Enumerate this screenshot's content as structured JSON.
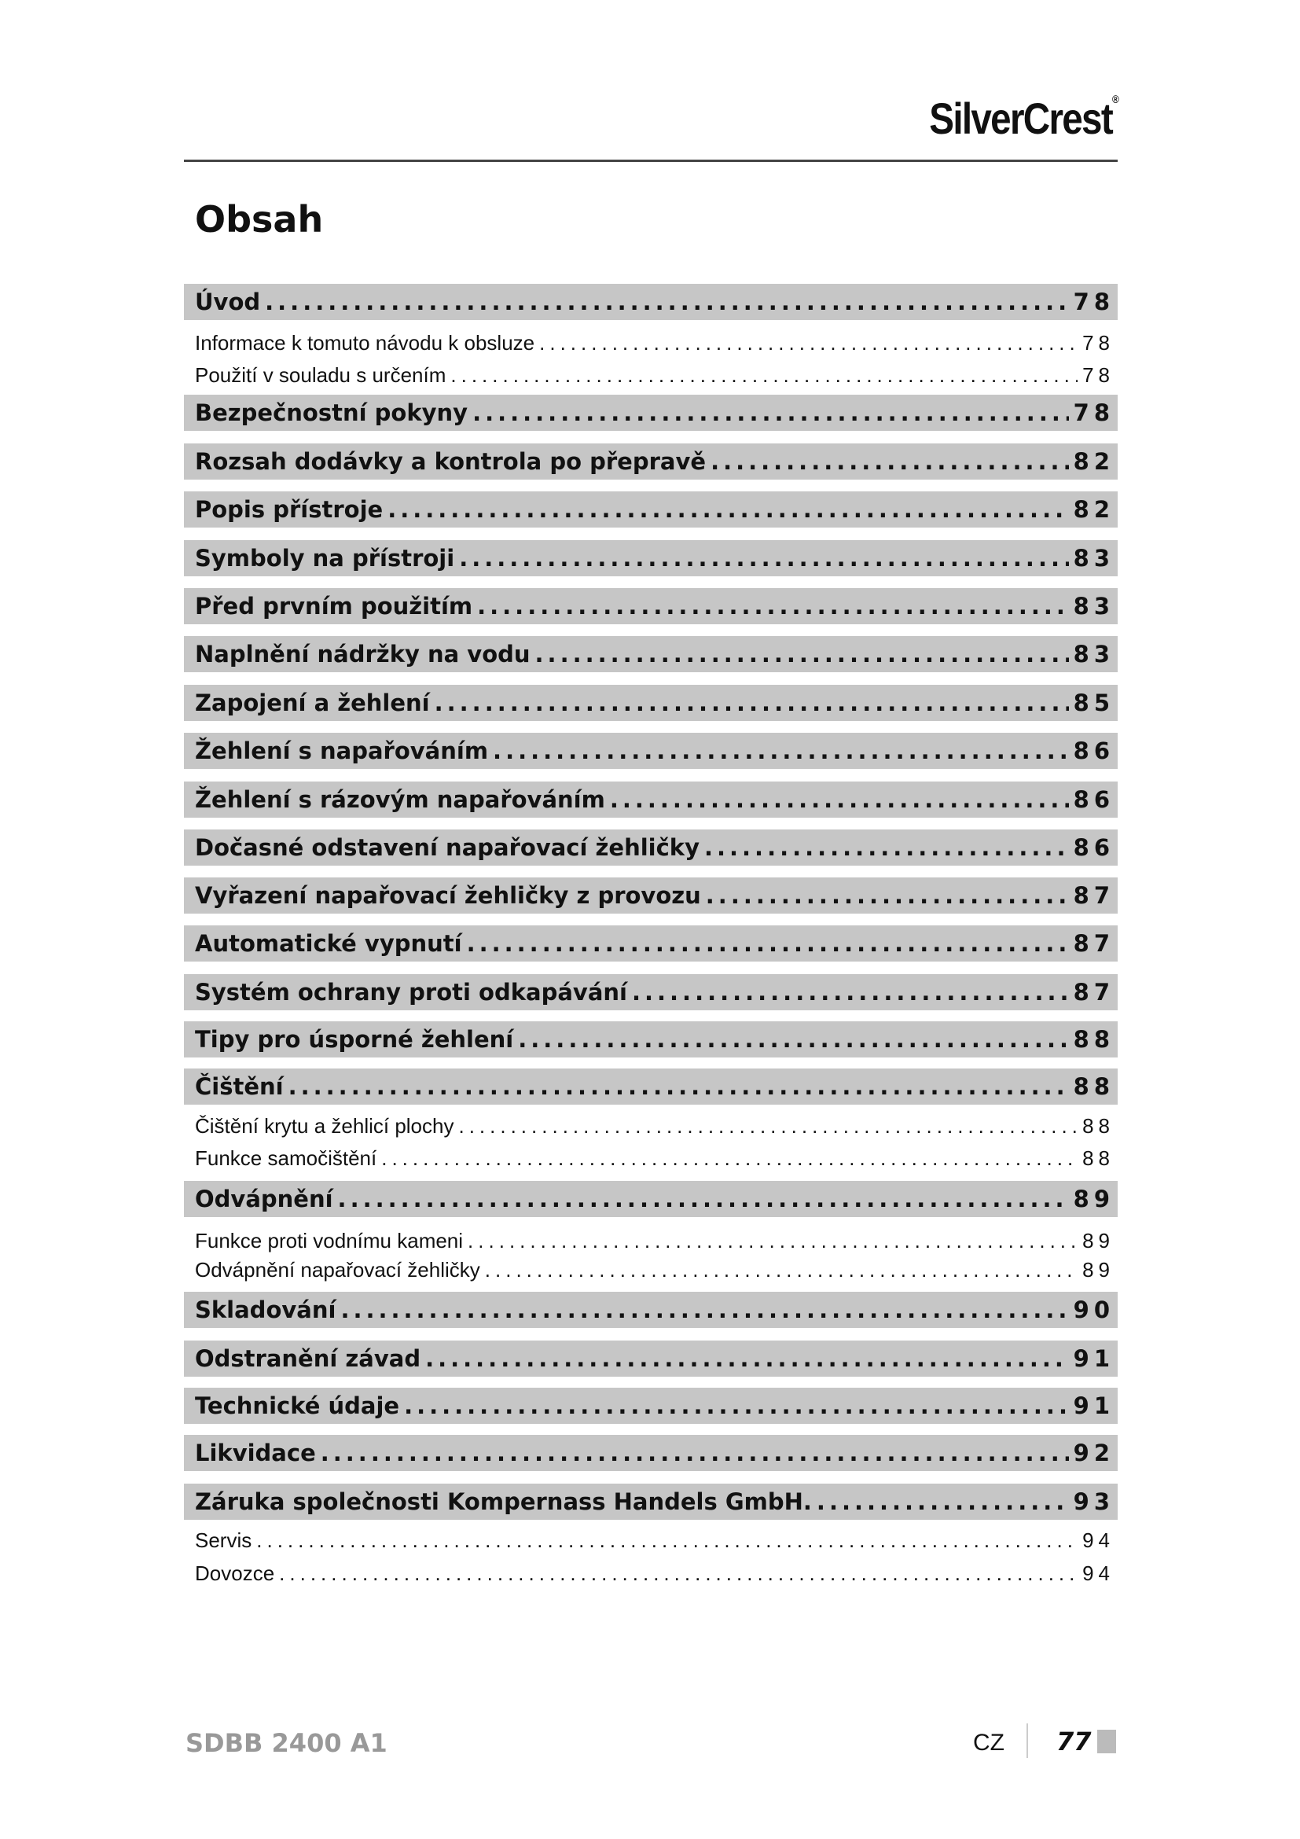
{
  "header": {
    "brand": "SilverCrest",
    "brand_mark": "®"
  },
  "title": "Obsah",
  "toc": [
    {
      "label": "Úvod",
      "page": "78",
      "level": "main"
    },
    {
      "label": "Informace k tomuto návodu k obsluze",
      "page": "78",
      "level": "sub"
    },
    {
      "label": "Použití v souladu s určením",
      "page": "78",
      "level": "sub"
    },
    {
      "label": "Bezpečnostní pokyny",
      "page": "78",
      "level": "main"
    },
    {
      "label": "Rozsah dodávky a kontrola po přepravě",
      "page": "82",
      "level": "main"
    },
    {
      "label": "Popis přístroje",
      "page": "82",
      "level": "main"
    },
    {
      "label": "Symboly na přístroji",
      "page": "83",
      "level": "main"
    },
    {
      "label": "Před prvním použitím",
      "page": "83",
      "level": "main"
    },
    {
      "label": "Naplnění nádržky na vodu",
      "page": "83",
      "level": "main"
    },
    {
      "label": "Zapojení a žehlení",
      "page": "85",
      "level": "main"
    },
    {
      "label": "Žehlení s napařováním",
      "page": "86",
      "level": "main"
    },
    {
      "label": "Žehlení s rázovým napařováním",
      "page": "86",
      "level": "main"
    },
    {
      "label": "Dočasné odstavení napařovací žehličky",
      "page": "86",
      "level": "main"
    },
    {
      "label": "Vyřazení napařovací žehličky z provozu",
      "page": "87",
      "level": "main"
    },
    {
      "label": "Automatické vypnutí",
      "page": "87",
      "level": "main"
    },
    {
      "label": "Systém ochrany proti odkapávání",
      "page": "87",
      "level": "main"
    },
    {
      "label": "Tipy pro úsporné žehlení",
      "page": "88",
      "level": "main"
    },
    {
      "label": "Čištění",
      "page": "88",
      "level": "main"
    },
    {
      "label": "Čištění krytu a žehlicí plochy",
      "page": "88",
      "level": "sub"
    },
    {
      "label": "Funkce samočištění",
      "page": "88",
      "level": "sub"
    },
    {
      "label": "Odvápnění",
      "page": "89",
      "level": "main"
    },
    {
      "label": "Funkce proti vodnímu kameni",
      "page": "89",
      "level": "sub"
    },
    {
      "label": "Odvápnění napařovací žehličky",
      "page": "89",
      "level": "sub"
    },
    {
      "label": "Skladování",
      "page": "90",
      "level": "main"
    },
    {
      "label": "Odstranění závad",
      "page": "91",
      "level": "main"
    },
    {
      "label": "Technické údaje",
      "page": "91",
      "level": "main"
    },
    {
      "label": "Likvidace",
      "page": "92",
      "level": "main"
    },
    {
      "label": "Záruka společnosti Kompernass Handels GmbH.",
      "page": "93",
      "level": "main"
    },
    {
      "label": "Servis",
      "page": "94",
      "level": "sub"
    },
    {
      "label": "Dovozce",
      "page": "94",
      "level": "sub"
    }
  ],
  "footer": {
    "model": "SDBB 2400 A1",
    "language": "CZ",
    "page_number": "77"
  },
  "colors": {
    "bar": "#c6c6c6",
    "footer_gray": "#999999"
  }
}
